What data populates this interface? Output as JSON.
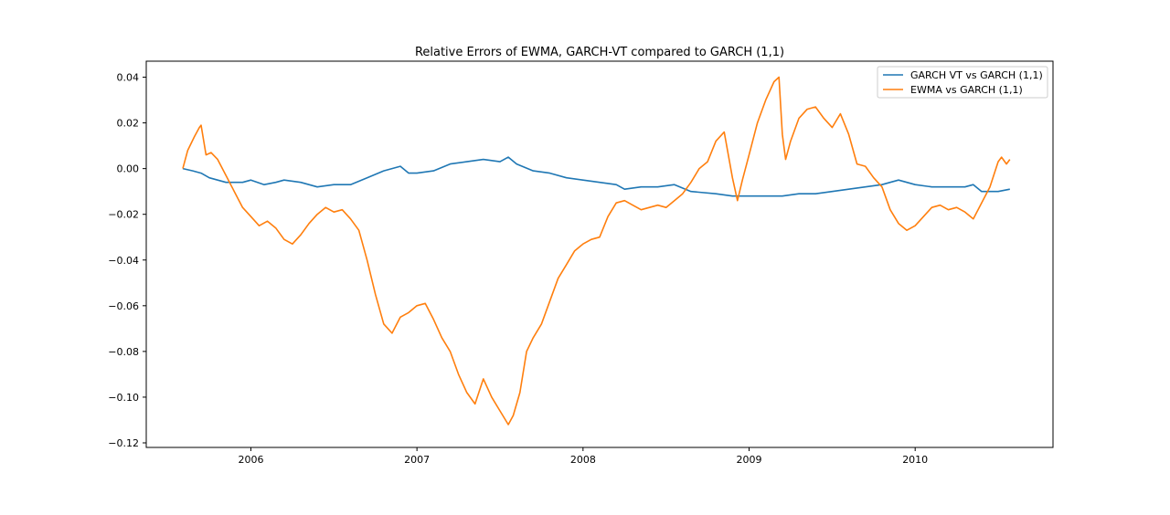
{
  "chart_data": {
    "type": "line",
    "title": "Relative Errors of EWMA, GARCH-VT compared to GARCH (1,1)",
    "xlabel": "",
    "ylabel": "",
    "xlim": [
      2005.37,
      2010.83
    ],
    "ylim": [
      -0.122,
      0.047
    ],
    "x_ticks": [
      2006,
      2007,
      2008,
      2009,
      2010
    ],
    "x_tick_labels": [
      "2006",
      "2007",
      "2008",
      "2009",
      "2010"
    ],
    "y_ticks": [
      0.04,
      0.02,
      0.0,
      -0.02,
      -0.04,
      -0.06,
      -0.08,
      -0.1,
      -0.12
    ],
    "y_tick_labels": [
      "0.04",
      "0.02",
      "0.00",
      "−0.02",
      "−0.04",
      "−0.06",
      "−0.08",
      "−0.10",
      "−0.12"
    ],
    "grid": false,
    "legend_position": "top-right",
    "series": [
      {
        "name": "GARCH VT vs GARCH (1,1)",
        "color": "#1f77b4",
        "x": [
          2005.59,
          2005.65,
          2005.7,
          2005.75,
          2005.85,
          2005.95,
          2006.0,
          2006.08,
          2006.15,
          2006.2,
          2006.3,
          2006.4,
          2006.5,
          2006.6,
          2006.7,
          2006.8,
          2006.9,
          2006.95,
          2007.0,
          2007.1,
          2007.2,
          2007.3,
          2007.4,
          2007.5,
          2007.55,
          2007.6,
          2007.7,
          2007.8,
          2007.9,
          2008.0,
          2008.1,
          2008.2,
          2008.25,
          2008.35,
          2008.45,
          2008.55,
          2008.65,
          2008.8,
          2008.9,
          2009.0,
          2009.1,
          2009.2,
          2009.3,
          2009.4,
          2009.5,
          2009.6,
          2009.7,
          2009.8,
          2009.85,
          2009.9,
          2010.0,
          2010.1,
          2010.2,
          2010.3,
          2010.35,
          2010.4,
          2010.5,
          2010.57
        ],
        "y": [
          0.0,
          -0.001,
          -0.002,
          -0.004,
          -0.006,
          -0.006,
          -0.005,
          -0.007,
          -0.006,
          -0.005,
          -0.006,
          -0.008,
          -0.007,
          -0.007,
          -0.004,
          -0.001,
          0.001,
          -0.002,
          -0.002,
          -0.001,
          0.002,
          0.003,
          0.004,
          0.003,
          0.005,
          0.002,
          -0.001,
          -0.002,
          -0.004,
          -0.005,
          -0.006,
          -0.007,
          -0.009,
          -0.008,
          -0.008,
          -0.007,
          -0.01,
          -0.011,
          -0.012,
          -0.012,
          -0.012,
          -0.012,
          -0.011,
          -0.011,
          -0.01,
          -0.009,
          -0.008,
          -0.007,
          -0.006,
          -0.005,
          -0.007,
          -0.008,
          -0.008,
          -0.008,
          -0.007,
          -0.01,
          -0.01,
          -0.009
        ]
      },
      {
        "name": "EWMA vs GARCH (1,1)",
        "color": "#ff7f0e",
        "x": [
          2005.59,
          2005.62,
          2005.66,
          2005.69,
          2005.7,
          2005.73,
          2005.76,
          2005.8,
          2005.85,
          2005.9,
          2005.95,
          2006.0,
          2006.05,
          2006.1,
          2006.15,
          2006.2,
          2006.25,
          2006.3,
          2006.35,
          2006.4,
          2006.45,
          2006.5,
          2006.55,
          2006.6,
          2006.65,
          2006.7,
          2006.75,
          2006.8,
          2006.85,
          2006.9,
          2006.95,
          2007.0,
          2007.05,
          2007.1,
          2007.15,
          2007.2,
          2007.25,
          2007.3,
          2007.35,
          2007.4,
          2007.45,
          2007.5,
          2007.55,
          2007.58,
          2007.62,
          2007.66,
          2007.7,
          2007.75,
          2007.8,
          2007.85,
          2007.9,
          2007.95,
          2008.0,
          2008.05,
          2008.1,
          2008.15,
          2008.2,
          2008.25,
          2008.3,
          2008.35,
          2008.4,
          2008.45,
          2008.5,
          2008.55,
          2008.6,
          2008.65,
          2008.7,
          2008.75,
          2008.8,
          2008.85,
          2008.9,
          2008.93,
          2008.96,
          2009.0,
          2009.05,
          2009.1,
          2009.15,
          2009.18,
          2009.2,
          2009.22,
          2009.25,
          2009.3,
          2009.35,
          2009.4,
          2009.45,
          2009.5,
          2009.55,
          2009.6,
          2009.65,
          2009.7,
          2009.75,
          2009.8,
          2009.85,
          2009.9,
          2009.95,
          2010.0,
          2010.05,
          2010.1,
          2010.15,
          2010.2,
          2010.25,
          2010.3,
          2010.35,
          2010.4,
          2010.45,
          2010.5,
          2010.52,
          2010.55,
          2010.57
        ],
        "y": [
          0.0,
          0.008,
          0.014,
          0.018,
          0.019,
          0.006,
          0.007,
          0.004,
          -0.003,
          -0.01,
          -0.017,
          -0.021,
          -0.025,
          -0.023,
          -0.026,
          -0.031,
          -0.033,
          -0.029,
          -0.024,
          -0.02,
          -0.017,
          -0.019,
          -0.018,
          -0.022,
          -0.027,
          -0.04,
          -0.055,
          -0.068,
          -0.072,
          -0.065,
          -0.063,
          -0.06,
          -0.059,
          -0.066,
          -0.074,
          -0.08,
          -0.09,
          -0.098,
          -0.103,
          -0.092,
          -0.1,
          -0.106,
          -0.112,
          -0.108,
          -0.098,
          -0.08,
          -0.074,
          -0.068,
          -0.058,
          -0.048,
          -0.042,
          -0.036,
          -0.033,
          -0.031,
          -0.03,
          -0.021,
          -0.015,
          -0.014,
          -0.016,
          -0.018,
          -0.017,
          -0.016,
          -0.017,
          -0.014,
          -0.011,
          -0.006,
          0.0,
          0.003,
          0.012,
          0.016,
          -0.004,
          -0.014,
          -0.005,
          0.006,
          0.02,
          0.03,
          0.038,
          0.04,
          0.015,
          0.004,
          0.012,
          0.022,
          0.026,
          0.027,
          0.022,
          0.018,
          0.024,
          0.015,
          0.002,
          0.001,
          -0.004,
          -0.008,
          -0.018,
          -0.024,
          -0.027,
          -0.025,
          -0.021,
          -0.017,
          -0.016,
          -0.018,
          -0.017,
          -0.019,
          -0.022,
          -0.015,
          -0.008,
          0.003,
          0.005,
          0.002,
          0.004
        ]
      }
    ]
  }
}
